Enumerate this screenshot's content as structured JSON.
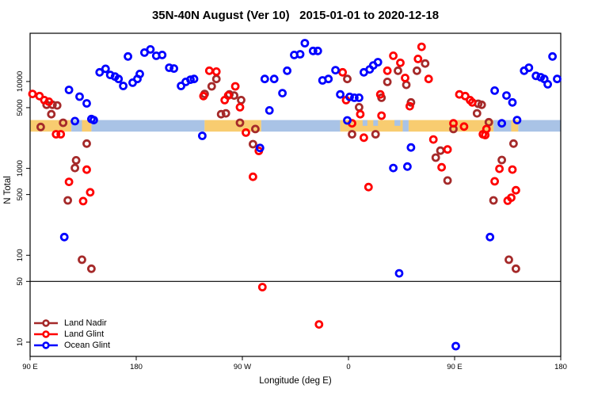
{
  "chart_data": {
    "type": "scatter",
    "title": "35N-40N August (Ver 10)   2015-01-01 to 2020-12-18",
    "xlabel": "Longitude (deg E)",
    "ylabel": "N Total",
    "x_axis": {
      "range_deg": [
        90,
        540
      ],
      "note": "longitude axis wraps eastward: 90E to 180 to 90W to 0 to 90E to 180",
      "ticks": [
        {
          "deg": 90,
          "label": "90 E"
        },
        {
          "deg": 180,
          "label": "180"
        },
        {
          "deg": 270,
          "label": "90 W"
        },
        {
          "deg": 360,
          "label": "0"
        },
        {
          "deg": 450,
          "label": "90 E"
        },
        {
          "deg": 540,
          "label": "180"
        }
      ]
    },
    "y_axis": {
      "scale": "log10",
      "ticks": [
        10,
        50,
        100,
        500,
        1000,
        5000,
        10000
      ],
      "range": [
        7,
        35000
      ]
    },
    "reference_line_n": 50,
    "coast_band": {
      "top_n": 3600,
      "bottom_n": 2650,
      "land_color": "#f8cc70",
      "ocean_color": "#a9c3e6",
      "segments": [
        {
          "from": 90,
          "to": 125,
          "type": "land"
        },
        {
          "from": 125,
          "to": 134,
          "type": "ocean"
        },
        {
          "from": 134,
          "to": 142,
          "type": "land"
        },
        {
          "from": 142,
          "to": 238,
          "type": "ocean"
        },
        {
          "from": 238,
          "to": 286,
          "type": "land"
        },
        {
          "from": 286,
          "to": 353,
          "type": "ocean"
        },
        {
          "from": 353,
          "to": 406,
          "type": "land"
        },
        {
          "from": 406,
          "to": 411,
          "type": "ocean"
        },
        {
          "from": 411,
          "to": 483,
          "type": "land"
        },
        {
          "from": 483,
          "to": 498,
          "type": "ocean"
        },
        {
          "from": 498,
          "to": 504,
          "type": "land"
        },
        {
          "from": 504,
          "to": 540,
          "type": "ocean"
        }
      ],
      "inlets_top_half": [
        {
          "from": 372,
          "to": 376
        },
        {
          "from": 381,
          "to": 385
        },
        {
          "from": 399,
          "to": 404
        }
      ]
    },
    "series": [
      {
        "name": "Land Nadir",
        "color": "#a52a2a",
        "points": [
          [
            104,
            5400
          ],
          [
            109,
            5400
          ],
          [
            113,
            5300
          ],
          [
            108,
            4200
          ],
          [
            99,
            3000
          ],
          [
            118,
            3350
          ],
          [
            138,
            1930
          ],
          [
            129,
            1240
          ],
          [
            128,
            1010
          ],
          [
            122,
            428
          ],
          [
            134,
            89
          ],
          [
            142,
            70
          ],
          [
            248,
            10700
          ],
          [
            244,
            8800
          ],
          [
            238,
            7200
          ],
          [
            259,
            7100
          ],
          [
            263,
            6900
          ],
          [
            269,
            6100
          ],
          [
            256,
            4300
          ],
          [
            252,
            4200
          ],
          [
            268,
            3350
          ],
          [
            281,
            2840
          ],
          [
            279,
            1900
          ],
          [
            359,
            10700
          ],
          [
            369,
            5050
          ],
          [
            388,
            6500
          ],
          [
            363,
            2470
          ],
          [
            383,
            2470
          ],
          [
            402,
            13300
          ],
          [
            425,
            16100
          ],
          [
            418,
            13300
          ],
          [
            409,
            9150
          ],
          [
            393,
            9900
          ],
          [
            413,
            5750
          ],
          [
            470,
            5550
          ],
          [
            473,
            5400
          ],
          [
            469,
            4300
          ],
          [
            449,
            2840
          ],
          [
            479,
            3400
          ],
          [
            500,
            1930
          ],
          [
            438,
            1600
          ],
          [
            434,
            1330
          ],
          [
            444,
            725
          ],
          [
            490,
            1250
          ],
          [
            483,
            428
          ],
          [
            496,
            89
          ],
          [
            502,
            70
          ]
        ]
      },
      {
        "name": "Land Glint",
        "color": "#ff0000",
        "points": [
          [
            92,
            7200
          ],
          [
            98,
            6800
          ],
          [
            102,
            6100
          ],
          [
            106,
            5850
          ],
          [
            112,
            2470
          ],
          [
            116,
            2470
          ],
          [
            138,
            966
          ],
          [
            123,
            700
          ],
          [
            141,
            530
          ],
          [
            135,
            420
          ],
          [
            237,
            6800
          ],
          [
            242,
            13300
          ],
          [
            248,
            13000
          ],
          [
            264,
            8800
          ],
          [
            255,
            6100
          ],
          [
            258,
            6900
          ],
          [
            268,
            5050
          ],
          [
            273,
            2580
          ],
          [
            284,
            1590
          ],
          [
            279,
            800
          ],
          [
            355,
            12750
          ],
          [
            358,
            6100
          ],
          [
            370,
            4200
          ],
          [
            363,
            3300
          ],
          [
            373,
            2260
          ],
          [
            387,
            7100
          ],
          [
            388,
            4050
          ],
          [
            398,
            19800
          ],
          [
            404,
            16400
          ],
          [
            419,
            18200
          ],
          [
            422,
            25100
          ],
          [
            393,
            13300
          ],
          [
            408,
            11000
          ],
          [
            428,
            10700
          ],
          [
            412,
            5200
          ],
          [
            454,
            7100
          ],
          [
            459,
            6800
          ],
          [
            463,
            6100
          ],
          [
            465,
            5750
          ],
          [
            449,
            3300
          ],
          [
            458,
            3030
          ],
          [
            477,
            2840
          ],
          [
            474,
            2470
          ],
          [
            476,
            2420
          ],
          [
            432,
            2150
          ],
          [
            444,
            1650
          ],
          [
            439,
            1030
          ],
          [
            488,
            990
          ],
          [
            499,
            970
          ],
          [
            484,
            710
          ],
          [
            502,
            560
          ],
          [
            495,
            425
          ],
          [
            498,
            460
          ],
          [
            377,
            609
          ],
          [
            287,
            43
          ],
          [
            335,
            16
          ]
        ]
      },
      {
        "name": "Ocean Glint",
        "color": "#0000ff",
        "points": [
          [
            149,
            12750
          ],
          [
            154,
            14000
          ],
          [
            158,
            11900
          ],
          [
            162,
            11400
          ],
          [
            165,
            10700
          ],
          [
            169,
            8900
          ],
          [
            173,
            19400
          ],
          [
            177,
            9700
          ],
          [
            181,
            10700
          ],
          [
            183,
            12200
          ],
          [
            187,
            21500
          ],
          [
            192,
            23400
          ],
          [
            197,
            19800
          ],
          [
            202,
            20200
          ],
          [
            208,
            14400
          ],
          [
            212,
            14100
          ],
          [
            218,
            8900
          ],
          [
            222,
            9900
          ],
          [
            226,
            10500
          ],
          [
            229,
            10700
          ],
          [
            123,
            8000
          ],
          [
            132,
            6700
          ],
          [
            138,
            5600
          ],
          [
            144,
            3600
          ],
          [
            128,
            3500
          ],
          [
            142,
            3700
          ],
          [
            236,
            2370
          ],
          [
            119,
            162
          ],
          [
            323,
            27600
          ],
          [
            314,
            20200
          ],
          [
            319,
            20600
          ],
          [
            330,
            22500
          ],
          [
            334,
            22500
          ],
          [
            308,
            13300
          ],
          [
            289,
            10700
          ],
          [
            297,
            10700
          ],
          [
            304,
            7350
          ],
          [
            293,
            4650
          ],
          [
            338,
            10300
          ],
          [
            343,
            10700
          ],
          [
            349,
            13500
          ],
          [
            353,
            7100
          ],
          [
            361,
            6650
          ],
          [
            365,
            6500
          ],
          [
            369,
            6500
          ],
          [
            359,
            3570
          ],
          [
            373,
            12750
          ],
          [
            378,
            13800
          ],
          [
            381,
            15300
          ],
          [
            385,
            16700
          ],
          [
            484,
            7850
          ],
          [
            494,
            6900
          ],
          [
            499,
            5750
          ],
          [
            509,
            13300
          ],
          [
            513,
            14400
          ],
          [
            519,
            11600
          ],
          [
            523,
            11200
          ],
          [
            526,
            10700
          ],
          [
            529,
            9300
          ],
          [
            533,
            19400
          ],
          [
            537,
            10700
          ],
          [
            490,
            3300
          ],
          [
            503,
            3600
          ],
          [
            413,
            1740
          ],
          [
            398,
            1010
          ],
          [
            410,
            1050
          ],
          [
            285,
            1720
          ],
          [
            480,
            162
          ],
          [
            403,
            62
          ],
          [
            451,
            9
          ]
        ]
      }
    ]
  }
}
